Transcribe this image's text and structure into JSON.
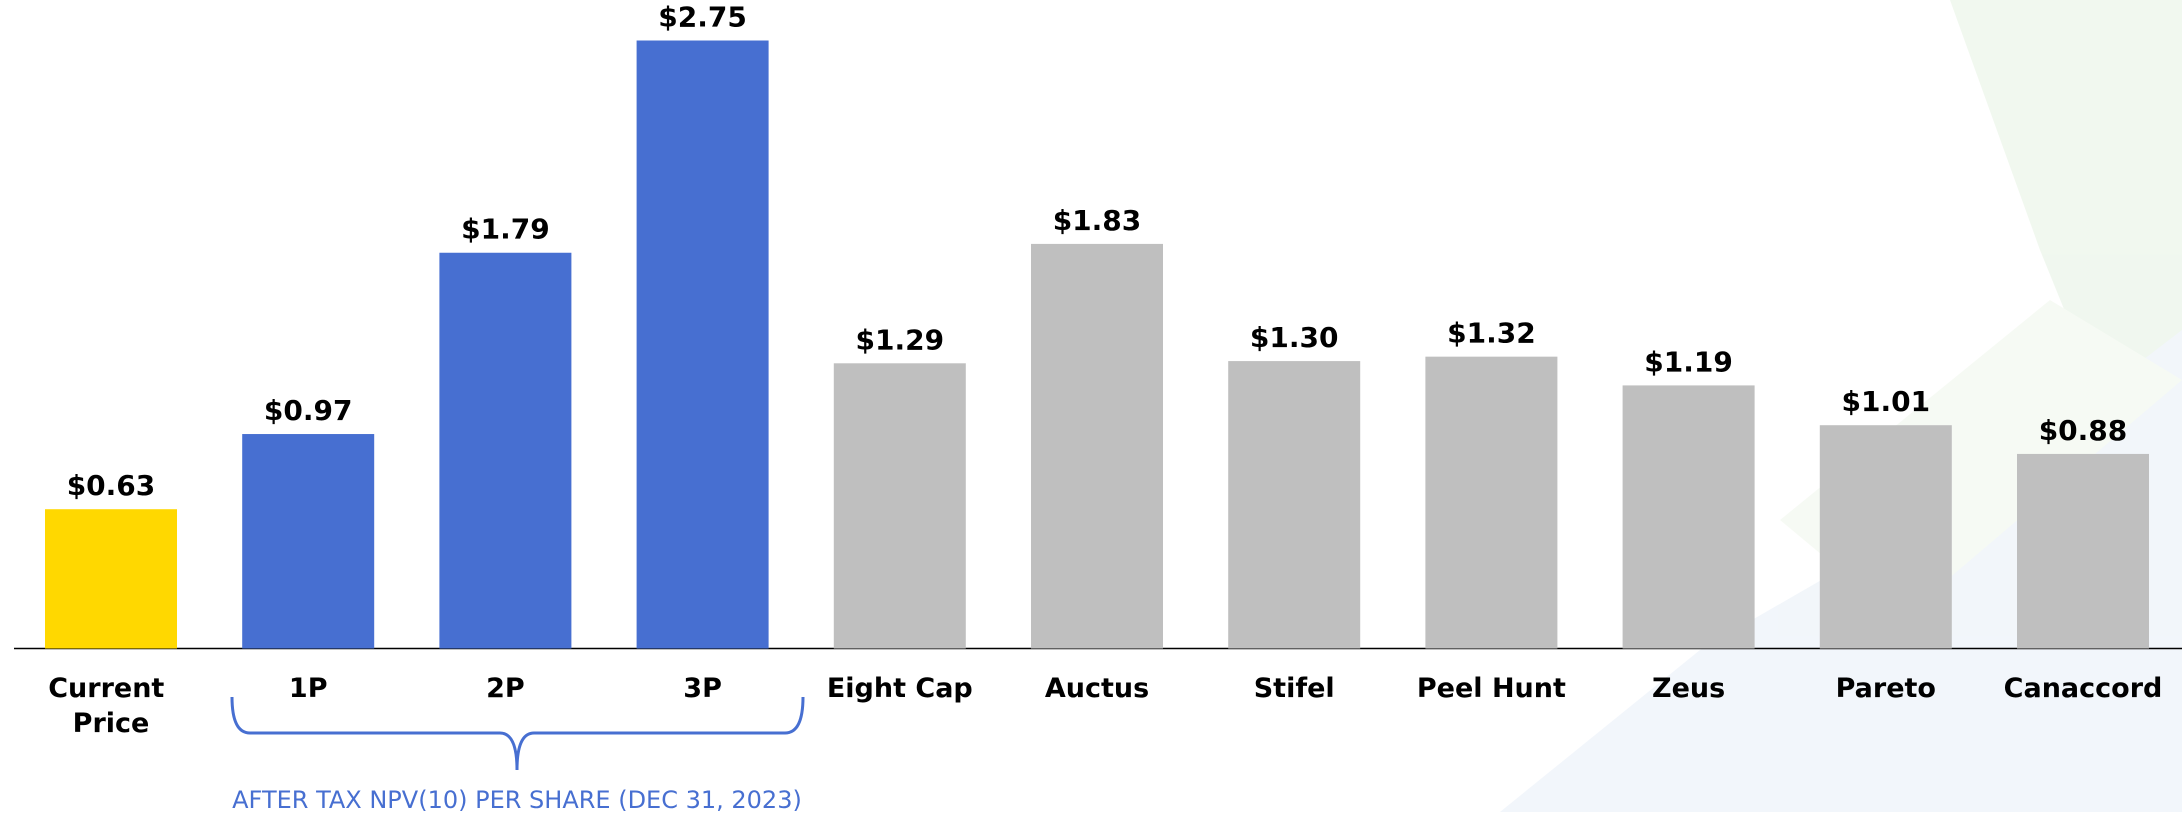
{
  "chart_data": {
    "type": "bar",
    "categories": [
      "Current Price",
      "1P",
      "2P",
      "3P",
      "Eight Cap",
      "Auctus",
      "Stifel",
      "Peel Hunt",
      "Zeus",
      "Pareto",
      "Canaccord"
    ],
    "values": [
      0.63,
      0.97,
      1.79,
      2.75,
      1.29,
      1.83,
      1.3,
      1.32,
      1.19,
      1.01,
      0.88
    ],
    "value_labels": [
      "$0.63",
      "$0.97",
      "$1.79",
      "$2.75",
      "$1.29",
      "$1.83",
      "$1.30",
      "$1.32",
      "$1.19",
      "$1.01",
      "$0.88"
    ],
    "colors": [
      "#ffd800",
      "#476fd1",
      "#476fd1",
      "#476fd1",
      "#bfbfbf",
      "#bfbfbf",
      "#bfbfbf",
      "#bfbfbf",
      "#bfbfbf",
      "#bfbfbf",
      "#bfbfbf"
    ],
    "annotation": "AFTER TAX NPV(10) PER SHARE (DEC 31, 2023)",
    "annotation_color": "#476fd1"
  }
}
